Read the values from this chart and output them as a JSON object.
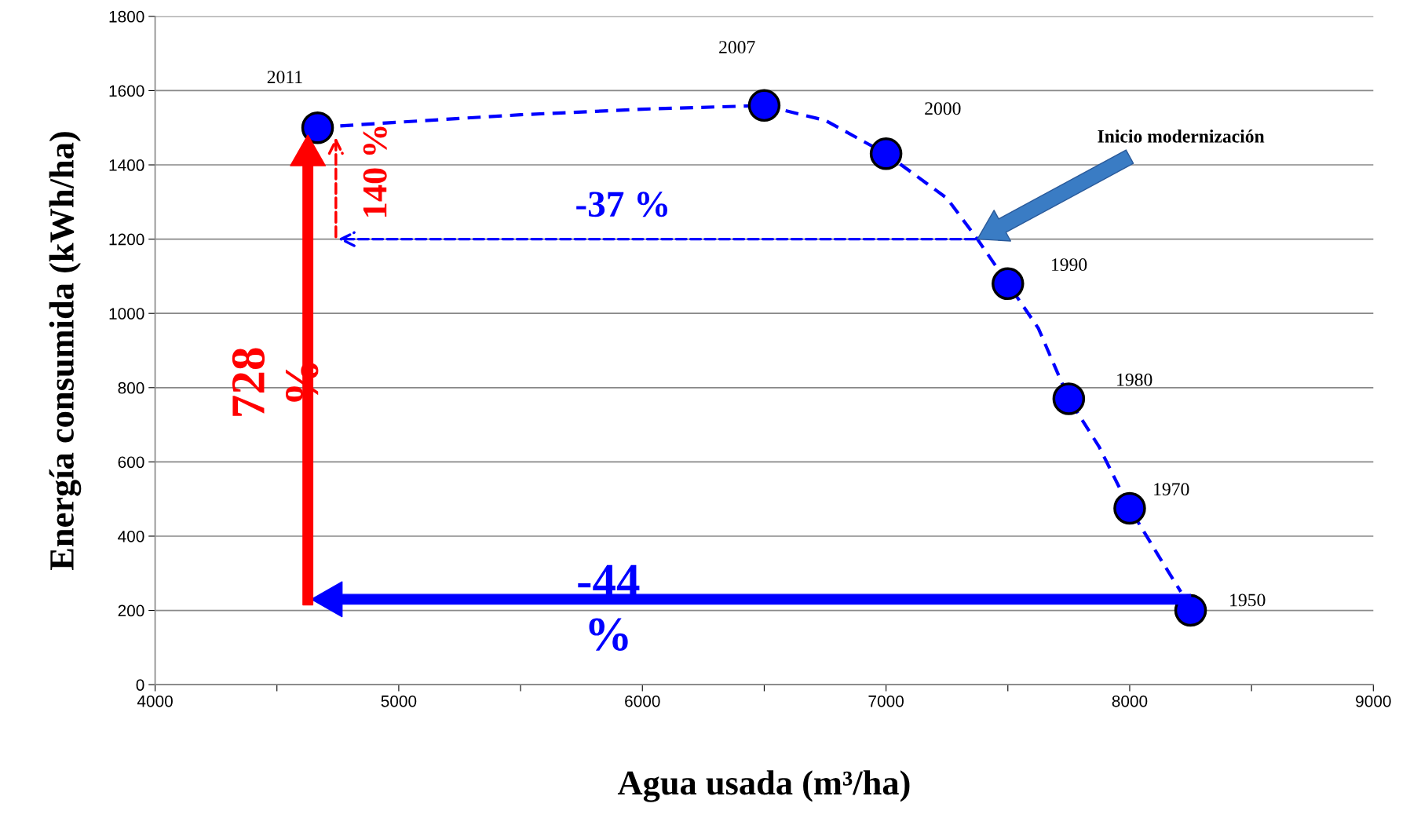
{
  "chart_data": {
    "type": "scatter",
    "xlabel": "Agua usada (m³/ha)",
    "ylabel": "Energía consumida (kWh/ha)",
    "x": [
      4667,
      6500,
      7000,
      7500,
      7750,
      8000,
      8250
    ],
    "series": [
      {
        "type": "line",
        "color": "#0000ff",
        "line_style": "dashed",
        "marker": "none",
        "x": [
          4760,
          5000,
          5500,
          6000,
          6500,
          6750,
          7000,
          7250,
          7375,
          7500,
          7625,
          7750,
          7875,
          8000,
          8125,
          8210
        ],
        "values": [
          1505,
          1515,
          1535,
          1550,
          1560,
          1520,
          1430,
          1310,
          1200,
          1080,
          960,
          770,
          640,
          475,
          340,
          250
        ]
      },
      {
        "color": "#0000ff",
        "marker": "circle",
        "values": [
          1500,
          1560,
          1430,
          1080,
          770,
          475,
          200
        ]
      }
    ],
    "xlim": [
      4000,
      9000
    ],
    "xticks": [
      4000,
      {
        "value": 4500,
        "label": null
      },
      5000,
      {
        "value": 5500,
        "label": null
      },
      6000,
      {
        "value": 6500,
        "label": null
      },
      7000,
      {
        "value": 7500,
        "label": null
      },
      8000,
      {
        "value": 8500,
        "label": null
      },
      9000
    ],
    "ylim": [
      0,
      1800
    ],
    "yticks": [
      0,
      200,
      400,
      600,
      800,
      1000,
      1200,
      1400,
      1600,
      1800
    ],
    "grid": "y",
    "annotations": [
      {
        "text": "2011",
        "x": 4667,
        "y": 1500
      },
      {
        "text": "2007",
        "x": 6500,
        "y": 1560
      },
      {
        "text": "2000",
        "x": 7000,
        "y": 1430
      },
      {
        "text": "1990",
        "x": 7500,
        "y": 1080
      },
      {
        "text": "1980",
        "x": 7750,
        "y": 770
      },
      {
        "text": "1970",
        "x": 8000,
        "y": 475
      },
      {
        "text": "1950",
        "x": 8250,
        "y": 200
      },
      "Inicio modernización",
      "-37 %",
      "140 %",
      "728\n%",
      "-44\n%"
    ]
  }
}
